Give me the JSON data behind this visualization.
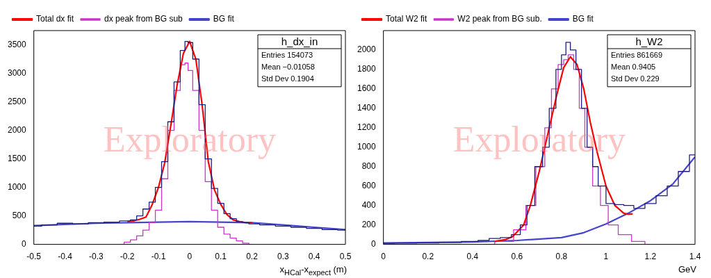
{
  "chart_data": [
    {
      "type": "line",
      "xlabel": "x$_{HCal}$-x$_{expect}$ (m)",
      "xlim": [
        -0.5,
        0.5
      ],
      "xticks": [
        -0.5,
        -0.4,
        -0.3,
        -0.2,
        -0.1,
        0,
        0.1,
        0.2,
        0.3,
        0.4,
        0.5
      ],
      "ylim": [
        0,
        3750
      ],
      "yticks": [
        0,
        500,
        1000,
        1500,
        2000,
        2500,
        3000,
        3500
      ],
      "grid": false,
      "legend": "top left",
      "marker": "none",
      "annotations": [
        "h_dx_in",
        "Entries 154073",
        "Mean −0.01058",
        "Std Dev 0.1904",
        "Exploratory"
      ],
      "series": [
        {
          "type": "step",
          "color": "#1f1f7a",
          "x": [
            -0.5,
            -0.45,
            -0.4,
            -0.35,
            -0.3,
            -0.25,
            -0.2,
            -0.18,
            -0.16,
            -0.14,
            -0.12,
            -0.1,
            -0.08,
            -0.06,
            -0.04,
            -0.02,
            -0.01,
            0,
            0.02,
            0.04,
            0.06,
            0.08,
            0.1,
            0.12,
            0.14,
            0.16,
            0.18,
            0.2,
            0.25,
            0.3,
            0.35,
            0.4,
            0.45,
            0.5
          ],
          "values": [
            320,
            340,
            370,
            360,
            380,
            390,
            410,
            430,
            500,
            620,
            740,
            1000,
            1450,
            2150,
            2850,
            3400,
            3560,
            3540,
            3250,
            2450,
            1500,
            980,
            720,
            540,
            450,
            400,
            380,
            360,
            340,
            320,
            300,
            280,
            260,
            250
          ]
        },
        {
          "type": "line",
          "name": "Total dx fit",
          "color": "#ff0000",
          "x": [
            -0.2,
            -0.18,
            -0.16,
            -0.14,
            -0.12,
            -0.1,
            -0.08,
            -0.06,
            -0.04,
            -0.02,
            0,
            0.02,
            0.04,
            0.06,
            0.08,
            0.1,
            0.12,
            0.14,
            0.16,
            0.18,
            0.2
          ],
          "values": [
            400,
            410,
            440,
            480,
            700,
            1000,
            1430,
            2100,
            2800,
            3350,
            3560,
            3250,
            2450,
            1450,
            950,
            700,
            520,
            430,
            400,
            380,
            380
          ]
        },
        {
          "type": "step",
          "name": "dx peak from BG sub",
          "color": "#cc33cc",
          "x": [
            -0.22,
            -0.2,
            -0.18,
            -0.16,
            -0.14,
            -0.12,
            -0.1,
            -0.08,
            -0.06,
            -0.04,
            -0.02,
            -0.01,
            0,
            0.02,
            0.04,
            0.06,
            0.08,
            0.1,
            0.12,
            0.14,
            0.16,
            0.18,
            0.2
          ],
          "values": [
            0,
            40,
            80,
            150,
            250,
            380,
            600,
            1150,
            2000,
            2700,
            3150,
            3180,
            3050,
            2700,
            2000,
            1100,
            600,
            300,
            180,
            110,
            60,
            20,
            0
          ]
        },
        {
          "type": "line",
          "name": "BG fit",
          "color": "#4444cc",
          "x": [
            -0.5,
            -0.3,
            -0.1,
            0,
            0.1,
            0.2,
            0.3,
            0.4,
            0.5
          ],
          "values": [
            330,
            370,
            390,
            400,
            390,
            380,
            340,
            300,
            260
          ]
        }
      ]
    },
    {
      "type": "line",
      "xlabel": "GeV",
      "xlim": [
        0,
        1.4
      ],
      "xticks": [
        0,
        0.2,
        0.4,
        0.6,
        0.8,
        1,
        1.2,
        1.4
      ],
      "ylim": [
        0,
        2200
      ],
      "yticks": [
        0,
        200,
        400,
        600,
        800,
        1000,
        1200,
        1400,
        1600,
        1800,
        2000
      ],
      "grid": false,
      "legend": "top left",
      "marker": "none",
      "annotations": [
        "h_W2",
        "Entries 861669",
        "Mean 0.9405",
        "Std Dev 0.229",
        "Exploratory"
      ],
      "series": [
        {
          "type": "step",
          "color": "#1f1f7a",
          "x": [
            0,
            0.1,
            0.2,
            0.3,
            0.4,
            0.45,
            0.5,
            0.55,
            0.6,
            0.63,
            0.66,
            0.7,
            0.73,
            0.76,
            0.79,
            0.81,
            0.83,
            0.85,
            0.88,
            0.9,
            0.93,
            0.95,
            0.98,
            1.02,
            1.06,
            1.1,
            1.15,
            1.2,
            1.25,
            1.3,
            1.35,
            1.4
          ],
          "values": [
            10,
            12,
            15,
            20,
            30,
            40,
            60,
            70,
            100,
            200,
            400,
            800,
            1000,
            1400,
            1800,
            1950,
            2080,
            2000,
            1800,
            1400,
            1000,
            800,
            600,
            420,
            410,
            400,
            370,
            420,
            500,
            600,
            750,
            920
          ]
        },
        {
          "type": "line",
          "name": "Total W2 fit",
          "color": "#ff0000",
          "x": [
            0.5,
            0.55,
            0.58,
            0.63,
            0.66,
            0.7,
            0.74,
            0.78,
            0.81,
            0.84,
            0.87,
            0.9,
            0.93,
            0.96,
            1,
            1.04,
            1.08,
            1.1,
            1.12
          ],
          "values": [
            30,
            50,
            80,
            200,
            400,
            750,
            1150,
            1550,
            1820,
            1930,
            1850,
            1600,
            1250,
            950,
            600,
            400,
            320,
            310,
            315
          ]
        },
        {
          "type": "step",
          "name": "W2 peak from BG sub.",
          "color": "#cc33cc",
          "x": [
            0.45,
            0.55,
            0.62,
            0.66,
            0.71,
            0.74,
            0.77,
            0.8,
            0.82,
            0.84,
            0.87,
            0.89,
            0.92,
            0.96,
            0.99,
            1.03,
            1.08,
            1.15,
            1.2
          ],
          "values": [
            0,
            30,
            150,
            400,
            800,
            1200,
            1600,
            1850,
            1900,
            1950,
            1800,
            1400,
            1000,
            600,
            400,
            200,
            100,
            30,
            0
          ]
        },
        {
          "type": "line",
          "name": "BG fit",
          "color": "#4444cc",
          "x": [
            0,
            0.2,
            0.4,
            0.6,
            0.8,
            0.9,
            1,
            1.1,
            1.2,
            1.3,
            1.4
          ],
          "values": [
            15,
            20,
            25,
            40,
            70,
            120,
            210,
            320,
            450,
            620,
            900
          ]
        }
      ]
    }
  ]
}
